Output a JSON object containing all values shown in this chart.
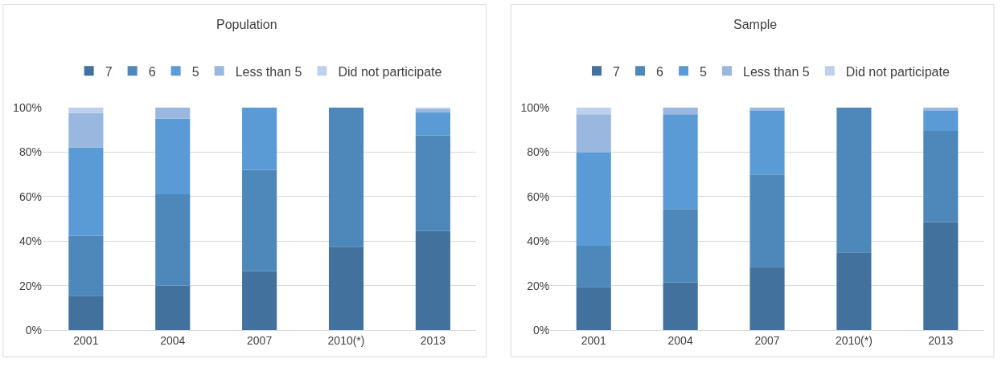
{
  "chart_data": [
    {
      "type": "bar",
      "title": "Population",
      "categories": [
        "2001",
        "2004",
        "2007",
        "2010(*)",
        "2013"
      ],
      "stacked": true,
      "ylim": [
        0,
        1
      ],
      "yticks": [
        {
          "value": 0,
          "label": "0%"
        },
        {
          "value": 0.2,
          "label": "20%"
        },
        {
          "value": 0.4,
          "label": "40%"
        },
        {
          "value": 0.6,
          "label": "60%"
        },
        {
          "value": 0.8,
          "label": "80%"
        },
        {
          "value": 1,
          "label": "100%"
        }
      ],
      "grid": "y",
      "legend": "top",
      "series": [
        {
          "name": "7",
          "color": "#41719c",
          "values": [
            0.155,
            0.2,
            0.265,
            0.375,
            0.445
          ]
        },
        {
          "name": "6",
          "color": "#4e88bb",
          "values": [
            0.27,
            0.41,
            0.455,
            0.625,
            0.43
          ]
        },
        {
          "name": "5",
          "color": "#5b9bd5",
          "values": [
            0.395,
            0.34,
            0.28,
            0,
            0.105
          ]
        },
        {
          "name": "Less than 5",
          "color": "#9ab8df",
          "values": [
            0.155,
            0.05,
            0,
            0,
            0.015
          ]
        },
        {
          "name": "Did not participate",
          "color": "#bdd1ec",
          "values": [
            0.025,
            0,
            0,
            0,
            0.005
          ]
        }
      ]
    },
    {
      "type": "bar",
      "title": "Sample",
      "categories": [
        "2001",
        "2004",
        "2007",
        "2010(*)",
        "2013"
      ],
      "stacked": true,
      "ylim": [
        0,
        1
      ],
      "yticks": [
        {
          "value": 0,
          "label": "0%"
        },
        {
          "value": 0.2,
          "label": "20%"
        },
        {
          "value": 0.4,
          "label": "40%"
        },
        {
          "value": 0.6,
          "label": "60%"
        },
        {
          "value": 0.8,
          "label": "80%"
        },
        {
          "value": 1,
          "label": "100%"
        }
      ],
      "grid": "y",
      "legend": "top",
      "series": [
        {
          "name": "7",
          "color": "#41719c",
          "values": [
            0.195,
            0.215,
            0.285,
            0.35,
            0.485
          ]
        },
        {
          "name": "6",
          "color": "#4e88bb",
          "values": [
            0.185,
            0.33,
            0.415,
            0.65,
            0.41
          ]
        },
        {
          "name": "5",
          "color": "#5b9bd5",
          "values": [
            0.42,
            0.425,
            0.285,
            0,
            0.09
          ]
        },
        {
          "name": "Less than 5",
          "color": "#9ab8df",
          "values": [
            0.17,
            0.03,
            0.015,
            0,
            0.015
          ]
        },
        {
          "name": "Did not participate",
          "color": "#bdd1ec",
          "values": [
            0.03,
            0,
            0,
            0,
            0
          ]
        }
      ]
    }
  ]
}
